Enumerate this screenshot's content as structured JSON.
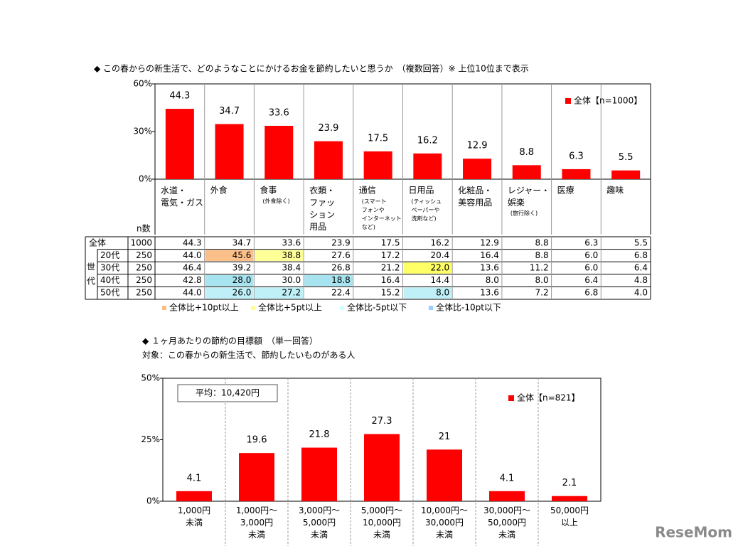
{
  "chart_data": [
    {
      "type": "bar",
      "title": "◆ この春からの新生活で、どのようなことにかけるお金を節約したいと思うか　（複数回答）※ 上位10位まで表示",
      "categories": [
        "水道・\n電気・ガス",
        "外食",
        "食事",
        "衣類・\nファッ\nション\n用品",
        "通信",
        "日用品",
        "化粧品・\n美容用品",
        "レジャー・\n娯楽",
        "医療",
        "趣味"
      ],
      "category_notes": [
        null,
        null,
        "(外食除く)",
        null,
        "(スマート\nフォンや\nインターネット\nなど)",
        "(ティッシュ\nペーパーや\n洗剤など)",
        null,
        "(旅行除く)",
        null,
        null
      ],
      "series": [
        {
          "name": "全体【n=1000】",
          "color": "#ff0000",
          "values": [
            44.3,
            34.7,
            33.6,
            23.9,
            17.5,
            16.2,
            12.9,
            8.8,
            6.3,
            5.5
          ]
        }
      ],
      "ylim": [
        0,
        60
      ],
      "yticks": [
        {
          "value": 0,
          "label": "0%"
        },
        {
          "value": 30,
          "label": "30%"
        },
        {
          "value": 60,
          "label": "60%"
        }
      ],
      "legend": "upper right"
    },
    {
      "type": "bar",
      "title": "◆ １ヶ月あたりの節約の目標額　（単一回答）",
      "subtitle": "対象：この春からの新生活で、節約したいものがある人",
      "annotation": "平均：10,420円",
      "categories": [
        "1,000円\n未満",
        "1,000円～\n3,000円\n未満",
        "3,000円～\n5,000円\n未満",
        "5,000円～\n10,000円\n未満",
        "10,000円～\n30,000円\n未満",
        "30,000円～\n50,000円\n未満",
        "50,000円\n以上"
      ],
      "series": [
        {
          "name": "全体【n=821】",
          "color": "#ff0000",
          "values": [
            4.1,
            19.6,
            21.8,
            27.3,
            21.0,
            4.1,
            2.1
          ]
        }
      ],
      "ylim": [
        0,
        50
      ],
      "yticks": [
        {
          "value": 0,
          "label": "0%"
        },
        {
          "value": 25,
          "label": "25%"
        },
        {
          "value": 50,
          "label": "50%"
        }
      ],
      "legend": "upper right"
    }
  ],
  "table": {
    "n_header": "n数",
    "group_label": "世\n代",
    "rows": [
      {
        "label": "全体",
        "n": "1000",
        "cells": [
          "44.3",
          "34.7",
          "33.6",
          "23.9",
          "17.5",
          "16.2",
          "12.9",
          "8.8",
          "6.3",
          "5.5"
        ],
        "colors": [
          null,
          null,
          null,
          null,
          null,
          null,
          null,
          null,
          null,
          null
        ]
      },
      {
        "label": "20代",
        "n": "250",
        "cells": [
          "44.0",
          "45.6",
          "38.8",
          "27.6",
          "17.2",
          "20.4",
          "16.4",
          "8.8",
          "6.0",
          "6.8"
        ],
        "colors": [
          null,
          "#fbc08a",
          "#ffff99",
          null,
          null,
          null,
          null,
          null,
          null,
          null
        ]
      },
      {
        "label": "30代",
        "n": "250",
        "cells": [
          "46.4",
          "39.2",
          "38.4",
          "26.8",
          "21.2",
          "22.0",
          "13.6",
          "11.2",
          "6.0",
          "6.4"
        ],
        "colors": [
          null,
          null,
          null,
          null,
          null,
          "#ffff66",
          null,
          null,
          null,
          null
        ]
      },
      {
        "label": "40代",
        "n": "250",
        "cells": [
          "42.8",
          "28.0",
          "30.0",
          "18.8",
          "16.4",
          "14.4",
          "8.0",
          "8.0",
          "6.4",
          "4.8"
        ],
        "colors": [
          null,
          "#a8e4f0",
          null,
          "#a8e4f0",
          null,
          null,
          null,
          null,
          null,
          null
        ]
      },
      {
        "label": "50代",
        "n": "250",
        "cells": [
          "44.0",
          "26.0",
          "27.2",
          "22.4",
          "15.2",
          "8.0",
          "13.6",
          "7.2",
          "6.8",
          "4.0"
        ],
        "colors": [
          null,
          "#bff0f8",
          "#bff0f8",
          null,
          null,
          "#bff0f8",
          null,
          null,
          null,
          null
        ]
      }
    ],
    "legend": [
      {
        "label": "全体比+10pt以上",
        "color": "#fbc08a"
      },
      {
        "label": "全体比+5pt以上",
        "color": "#ffff99"
      },
      {
        "label": "全体比-5pt以下",
        "color": "#ccffff"
      },
      {
        "label": "全体比-10pt以下",
        "color": "#99ccff"
      }
    ]
  },
  "watermark": "ReseMom"
}
